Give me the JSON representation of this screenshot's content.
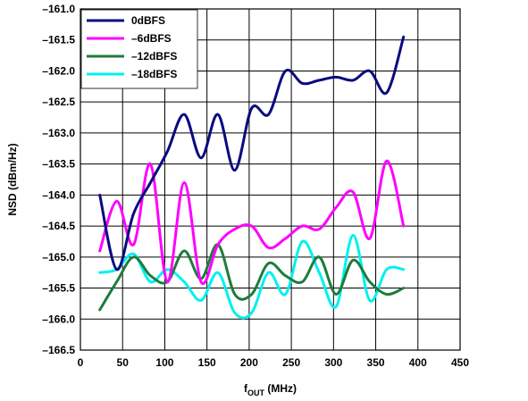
{
  "chart_data": {
    "type": "line",
    "xlabel_main": "f",
    "xlabel_sub": "OUT",
    "xlabel_unit": " (MHz)",
    "ylabel": "NSD (dBm/Hz)",
    "xlim": [
      0,
      450
    ],
    "ylim": [
      -166.5,
      -161.0
    ],
    "xticks": [
      0,
      50,
      100,
      150,
      200,
      250,
      300,
      350,
      400,
      450
    ],
    "xtick_labels": [
      "0",
      "50",
      "100",
      "150",
      "200",
      "250",
      "300",
      "350",
      "400",
      "450"
    ],
    "yticks": [
      -161.0,
      -161.5,
      -162.0,
      -162.5,
      -163.0,
      -163.5,
      -164.0,
      -164.5,
      -165.0,
      -165.5,
      -166.0,
      -166.5
    ],
    "ytick_labels": [
      "–161.0",
      "–161.5",
      "–162.0",
      "–162.5",
      "–163.0",
      "–163.5",
      "–164.0",
      "–164.5",
      "–165.0",
      "–165.5",
      "–166.0",
      "–166.5"
    ],
    "grid": true,
    "legend_position": "top-left",
    "series": [
      {
        "name": "0dBFS",
        "color": "#0a0a80",
        "x": [
          23,
          43,
          63,
          83,
          103,
          123,
          143,
          163,
          183,
          203,
          223,
          243,
          263,
          283,
          303,
          323,
          343,
          363,
          383
        ],
        "y": [
          -164.0,
          -165.2,
          -164.3,
          -163.8,
          -163.3,
          -162.7,
          -163.4,
          -162.7,
          -163.6,
          -162.6,
          -162.7,
          -162.0,
          -162.2,
          -162.15,
          -162.1,
          -162.15,
          -162.0,
          -162.35,
          -161.45
        ]
      },
      {
        "name": "–6dBFS",
        "color": "#ff00ff",
        "x": [
          23,
          43,
          63,
          83,
          103,
          123,
          143,
          163,
          183,
          203,
          223,
          243,
          263,
          283,
          303,
          323,
          343,
          363,
          383
        ],
        "y": [
          -164.9,
          -164.1,
          -164.8,
          -163.5,
          -165.4,
          -163.8,
          -165.4,
          -164.8,
          -164.55,
          -164.5,
          -164.85,
          -164.7,
          -164.5,
          -164.55,
          -164.2,
          -163.95,
          -164.7,
          -163.45,
          -164.5
        ]
      },
      {
        "name": "–12dBFS",
        "color": "#1e7c3c",
        "x": [
          23,
          43,
          63,
          83,
          103,
          123,
          143,
          163,
          183,
          203,
          223,
          243,
          263,
          283,
          303,
          323,
          343,
          363,
          383
        ],
        "y": [
          -165.85,
          -165.4,
          -165.0,
          -165.3,
          -165.4,
          -164.9,
          -165.35,
          -164.8,
          -165.6,
          -165.6,
          -165.1,
          -165.3,
          -165.4,
          -165.0,
          -165.6,
          -165.05,
          -165.4,
          -165.6,
          -165.5
        ]
      },
      {
        "name": "–18dBFS",
        "color": "#00f0f0",
        "x": [
          23,
          43,
          63,
          83,
          103,
          123,
          143,
          163,
          183,
          203,
          223,
          243,
          263,
          283,
          303,
          323,
          343,
          363,
          383
        ],
        "y": [
          -165.25,
          -165.2,
          -164.95,
          -165.4,
          -165.2,
          -165.4,
          -165.7,
          -165.25,
          -165.9,
          -165.9,
          -165.25,
          -165.6,
          -164.75,
          -165.25,
          -165.8,
          -164.65,
          -165.7,
          -165.2,
          -165.2
        ]
      }
    ]
  }
}
